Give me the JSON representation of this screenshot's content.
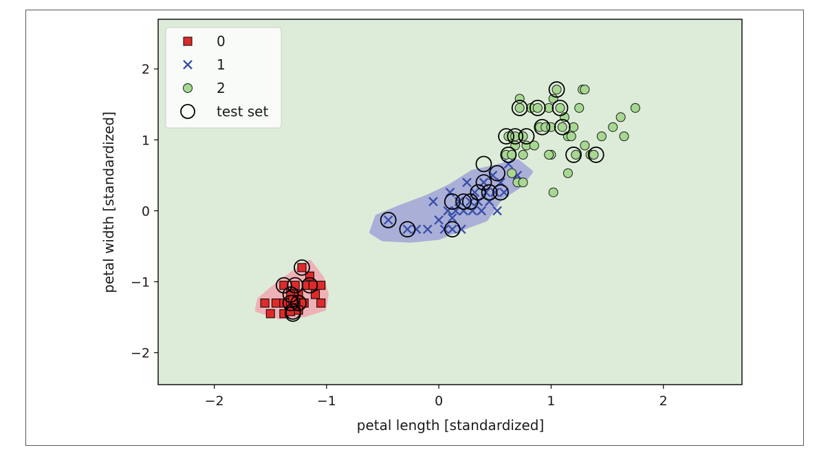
{
  "chart_data": {
    "type": "scatter",
    "title": "",
    "xlabel": "petal length [standardized]",
    "ylabel": "petal width [standardized]",
    "xlim": [
      -2.5,
      2.7
    ],
    "ylim": [
      -2.45,
      2.7
    ],
    "xticks": [
      -2,
      -1,
      0,
      1,
      2
    ],
    "yticks": [
      -2,
      -1,
      0,
      1,
      2
    ],
    "xtick_labels": [
      "−2",
      "−1",
      "0",
      "1",
      "2"
    ],
    "ytick_labels": [
      "−2",
      "−1",
      "0",
      "1",
      "2"
    ],
    "grid": false,
    "legend_position": "upper-left",
    "colors": {
      "background_region": "#dcecd8",
      "region_0": "#f0aeb4",
      "region_1": "#a8acd8",
      "class_0": "#e02a2a",
      "class_1": "#3a4fa8",
      "class_2": "#a6d891"
    },
    "legend": [
      {
        "label": "0",
        "marker": "square",
        "color": "#e02a2a"
      },
      {
        "label": "1",
        "marker": "x",
        "color": "#3a4fa8"
      },
      {
        "label": "2",
        "marker": "circle",
        "color": "#a6d891"
      },
      {
        "label": "test set",
        "marker": "open-circle",
        "color": "#000000"
      }
    ],
    "decision_regions": [
      {
        "class": "0",
        "polygon": [
          [
            -1.6,
            -1.25
          ],
          [
            -1.45,
            -1.05
          ],
          [
            -1.28,
            -0.85
          ],
          [
            -1.15,
            -0.72
          ],
          [
            -1.04,
            -0.95
          ],
          [
            -1.0,
            -1.18
          ],
          [
            -1.02,
            -1.38
          ],
          [
            -1.2,
            -1.47
          ],
          [
            -1.42,
            -1.5
          ],
          [
            -1.62,
            -1.4
          ]
        ]
      },
      {
        "class": "1",
        "polygon": [
          [
            -0.6,
            -0.3
          ],
          [
            -0.55,
            -0.08
          ],
          [
            -0.35,
            0.05
          ],
          [
            -0.1,
            0.2
          ],
          [
            0.1,
            0.35
          ],
          [
            0.3,
            0.55
          ],
          [
            0.5,
            0.62
          ],
          [
            0.7,
            0.7
          ],
          [
            0.82,
            0.55
          ],
          [
            0.72,
            0.35
          ],
          [
            0.55,
            0.18
          ],
          [
            0.42,
            -0.12
          ],
          [
            0.2,
            -0.25
          ],
          [
            0.0,
            -0.38
          ],
          [
            -0.25,
            -0.42
          ],
          [
            -0.5,
            -0.4
          ]
        ]
      }
    ],
    "series": [
      {
        "name": "0",
        "marker": "square",
        "points": [
          [
            -1.55,
            -1.3
          ],
          [
            -1.5,
            -1.45
          ],
          [
            -1.45,
            -1.3
          ],
          [
            -1.38,
            -1.05
          ],
          [
            -1.38,
            -1.3
          ],
          [
            -1.38,
            -1.45
          ],
          [
            -1.32,
            -1.18
          ],
          [
            -1.32,
            -1.3
          ],
          [
            -1.32,
            -1.42
          ],
          [
            -1.28,
            -1.05
          ],
          [
            -1.28,
            -1.3
          ],
          [
            -1.25,
            -1.18
          ],
          [
            -1.22,
            -0.8
          ],
          [
            -1.2,
            -1.3
          ],
          [
            -1.18,
            -1.05
          ],
          [
            -1.15,
            -0.92
          ],
          [
            -1.12,
            -1.05
          ],
          [
            -1.1,
            -1.18
          ],
          [
            -1.05,
            -1.3
          ],
          [
            -1.05,
            -1.05
          ],
          [
            -1.25,
            -1.4
          ],
          [
            -1.3,
            -1.25
          ]
        ]
      },
      {
        "name": "1",
        "marker": "x",
        "points": [
          [
            -0.45,
            -0.13
          ],
          [
            -0.28,
            -0.26
          ],
          [
            -0.2,
            -0.26
          ],
          [
            -0.1,
            -0.26
          ],
          [
            -0.05,
            0.13
          ],
          [
            0.0,
            -0.13
          ],
          [
            0.05,
            -0.26
          ],
          [
            0.08,
            0.0
          ],
          [
            0.1,
            0.26
          ],
          [
            0.12,
            -0.1
          ],
          [
            0.15,
            0.0
          ],
          [
            0.18,
            0.13
          ],
          [
            0.2,
            -0.26
          ],
          [
            0.22,
            0.0
          ],
          [
            0.25,
            0.4
          ],
          [
            0.28,
            0.13
          ],
          [
            0.3,
            0.0
          ],
          [
            0.32,
            0.26
          ],
          [
            0.35,
            0.13
          ],
          [
            0.38,
            0.0
          ],
          [
            0.4,
            0.4
          ],
          [
            0.42,
            0.26
          ],
          [
            0.45,
            0.13
          ],
          [
            0.48,
            0.5
          ],
          [
            0.5,
            0.26
          ],
          [
            0.52,
            0.0
          ],
          [
            0.58,
            0.26
          ],
          [
            0.62,
            0.66
          ],
          [
            0.7,
            0.5
          ],
          [
            0.55,
            0.4
          ],
          [
            0.12,
            -0.26
          ]
        ]
      },
      {
        "name": "2",
        "marker": "circle",
        "points": [
          [
            0.6,
            0.79
          ],
          [
            0.62,
            1.05
          ],
          [
            0.65,
            0.79
          ],
          [
            0.65,
            0.53
          ],
          [
            0.68,
            1.05
          ],
          [
            0.7,
            0.4
          ],
          [
            0.72,
            1.45
          ],
          [
            0.72,
            1.58
          ],
          [
            0.75,
            0.79
          ],
          [
            0.75,
            0.4
          ],
          [
            0.75,
            1.05
          ],
          [
            0.78,
            0.92
          ],
          [
            0.82,
            1.45
          ],
          [
            0.85,
            0.92
          ],
          [
            0.88,
            1.45
          ],
          [
            0.9,
            1.18
          ],
          [
            0.95,
            1.18
          ],
          [
            0.98,
            1.45
          ],
          [
            1.0,
            0.79
          ],
          [
            1.0,
            1.18
          ],
          [
            1.02,
            1.58
          ],
          [
            1.02,
            0.26
          ],
          [
            1.05,
            1.71
          ],
          [
            1.08,
            1.45
          ],
          [
            1.1,
            1.18
          ],
          [
            1.12,
            1.32
          ],
          [
            1.15,
            0.53
          ],
          [
            1.15,
            1.05
          ],
          [
            1.2,
            1.18
          ],
          [
            1.22,
            0.79
          ],
          [
            1.25,
            1.45
          ],
          [
            1.28,
            1.71
          ],
          [
            1.3,
            1.71
          ],
          [
            1.3,
            0.92
          ],
          [
            1.35,
            0.79
          ],
          [
            1.38,
            0.79
          ],
          [
            1.45,
            1.05
          ],
          [
            1.55,
            1.18
          ],
          [
            1.62,
            1.32
          ],
          [
            1.65,
            1.05
          ],
          [
            1.75,
            1.45
          ],
          [
            0.68,
            0.92
          ],
          [
            0.98,
            0.79
          ],
          [
            1.18,
            1.05
          ]
        ]
      }
    ],
    "test_set": [
      [
        -1.38,
        -1.05
      ],
      [
        -1.32,
        -1.18
      ],
      [
        -1.32,
        -1.3
      ],
      [
        -1.3,
        -1.42
      ],
      [
        -1.28,
        -1.05
      ],
      [
        -1.25,
        -1.3
      ],
      [
        -1.22,
        -0.8
      ],
      [
        -1.15,
        -1.05
      ],
      [
        -1.3,
        -1.45
      ],
      [
        -0.45,
        -0.13
      ],
      [
        -0.28,
        -0.26
      ],
      [
        0.12,
        0.13
      ],
      [
        0.12,
        -0.26
      ],
      [
        0.22,
        0.13
      ],
      [
        0.28,
        0.13
      ],
      [
        0.35,
        0.26
      ],
      [
        0.4,
        0.4
      ],
      [
        0.4,
        0.66
      ],
      [
        0.45,
        0.26
      ],
      [
        0.52,
        0.53
      ],
      [
        0.55,
        0.26
      ],
      [
        0.6,
        1.05
      ],
      [
        0.62,
        0.79
      ],
      [
        0.68,
        1.05
      ],
      [
        0.72,
        1.45
      ],
      [
        0.78,
        1.05
      ],
      [
        0.88,
        1.45
      ],
      [
        0.92,
        1.18
      ],
      [
        1.05,
        1.71
      ],
      [
        1.08,
        1.45
      ],
      [
        1.1,
        1.18
      ],
      [
        1.2,
        0.79
      ],
      [
        1.4,
        0.79
      ]
    ]
  }
}
